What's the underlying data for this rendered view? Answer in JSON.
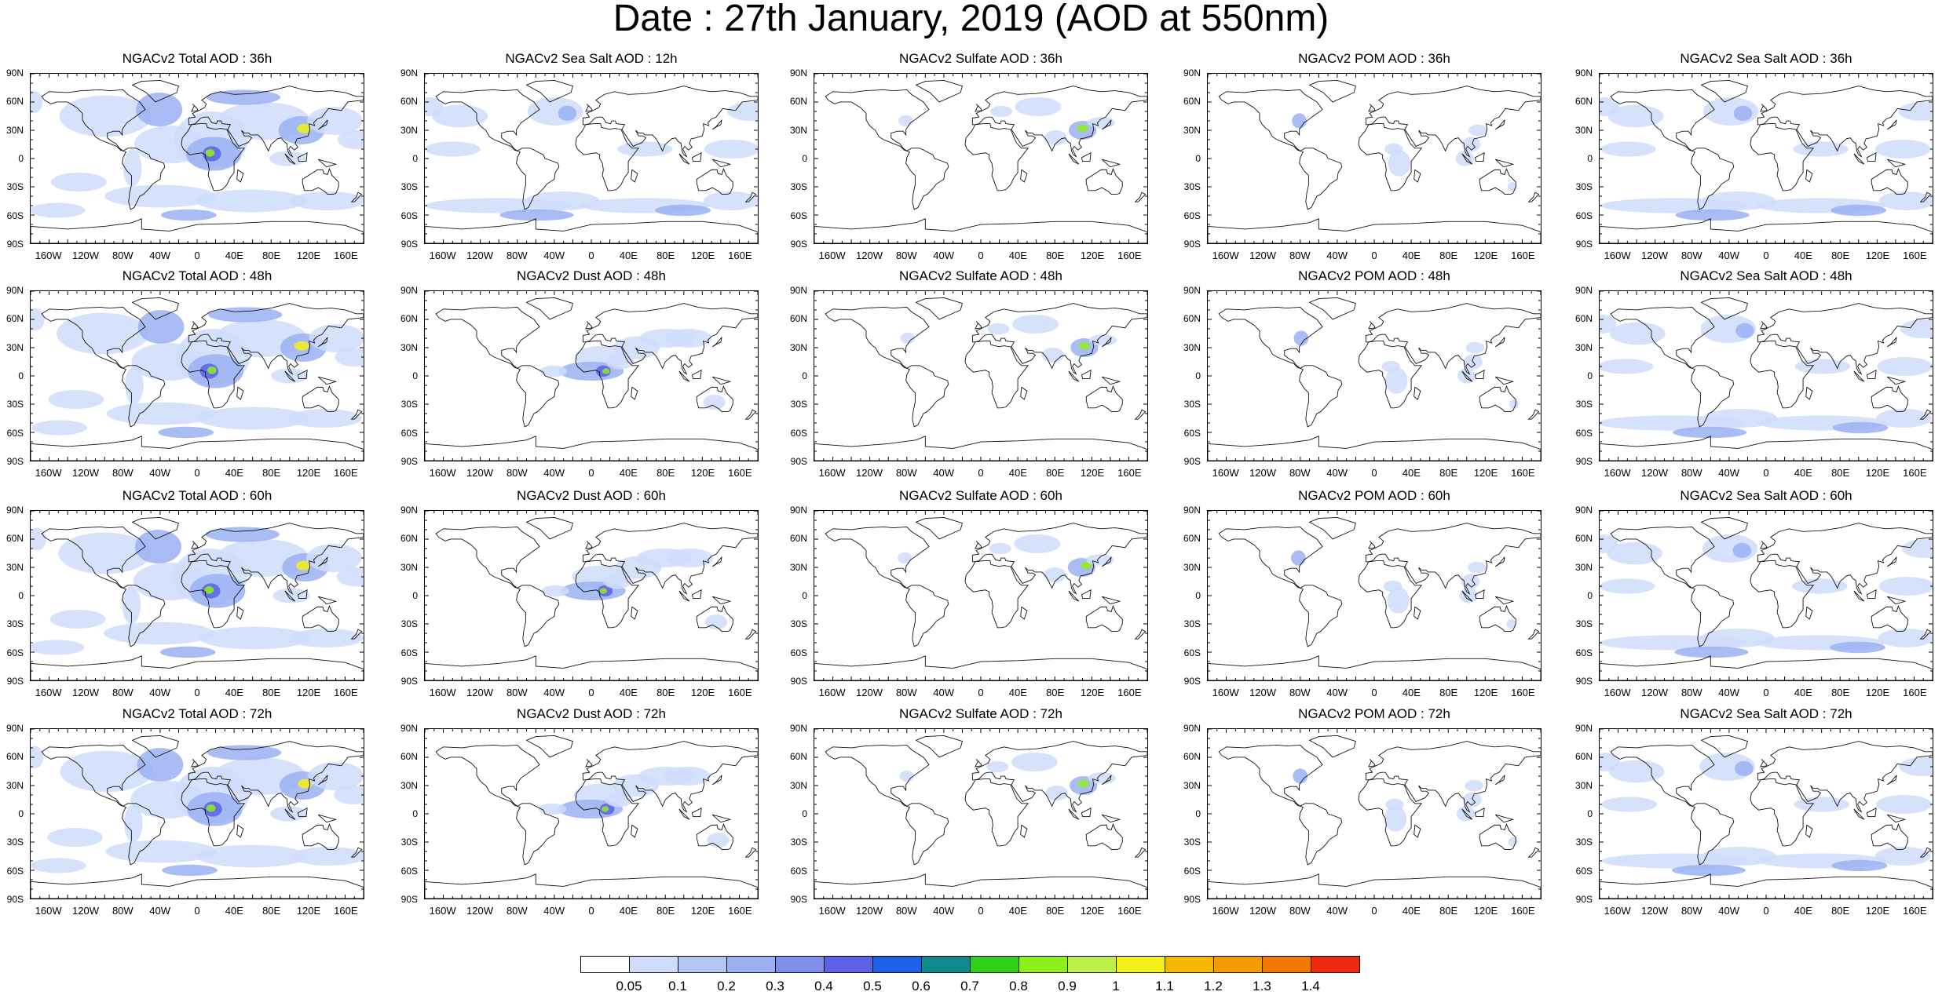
{
  "title": "Date : 27th January, 2019 (AOD at 550nm)",
  "panels": [
    [
      "NGACv2 Total AOD : 36h",
      "NGACv2 Sea Salt  AOD : 12h",
      "NGACv2 Sulfate AOD : 36h",
      "NGACv2 POM AOD : 36h",
      "NGACv2 Sea Salt  AOD : 36h"
    ],
    [
      "NGACv2 Total AOD : 48h",
      "NGACv2 Dust AOD : 48h",
      "NGACv2 Sulfate AOD : 48h",
      "NGACv2 POM AOD : 48h",
      "NGACv2 Sea Salt  AOD : 48h"
    ],
    [
      "NGACv2 Total AOD : 60h",
      "NGACv2 Dust AOD : 60h",
      "NGACv2 Sulfate AOD : 60h",
      "NGACv2 POM AOD : 60h",
      "NGACv2 Sea Salt  AOD : 60h"
    ],
    [
      "NGACv2 Total AOD : 72h",
      "NGACv2 Dust AOD : 72h",
      "NGACv2 Sulfate AOD : 72h",
      "NGACv2 POM AOD : 72h",
      "NGACv2 Sea Salt  AOD : 72h"
    ]
  ],
  "lat_labels": [
    "90N",
    "60N",
    "30N",
    "0",
    "30S",
    "60S",
    "90S"
  ],
  "lon_labels": [
    "160W",
    "120W",
    "80W",
    "40W",
    "0",
    "40E",
    "80E",
    "120E",
    "160E"
  ],
  "colorbar": {
    "labels": [
      "0.05",
      "0.1",
      "0.2",
      "0.3",
      "0.4",
      "0.5",
      "0.6",
      "0.7",
      "0.8",
      "0.9",
      "1",
      "1.1",
      "1.2",
      "1.3",
      "1.4"
    ],
    "colors": [
      "#ffffff",
      "#cfdcfb",
      "#b3c6f6",
      "#9ab0f2",
      "#7f8fee",
      "#5b62e6",
      "#1e60e8",
      "#0e8a8a",
      "#2fd01b",
      "#8ef01a",
      "#bdf04a",
      "#f2f01a",
      "#f5b800",
      "#f59a00",
      "#f27800",
      "#f02a10"
    ]
  },
  "aerosol_colors": {
    "low": "#cfdcfb",
    "mid": "#9ab0f2",
    "high": "#5b62e6",
    "hot_green": "#8ef01a",
    "hot_yellow": "#f2f01a"
  }
}
